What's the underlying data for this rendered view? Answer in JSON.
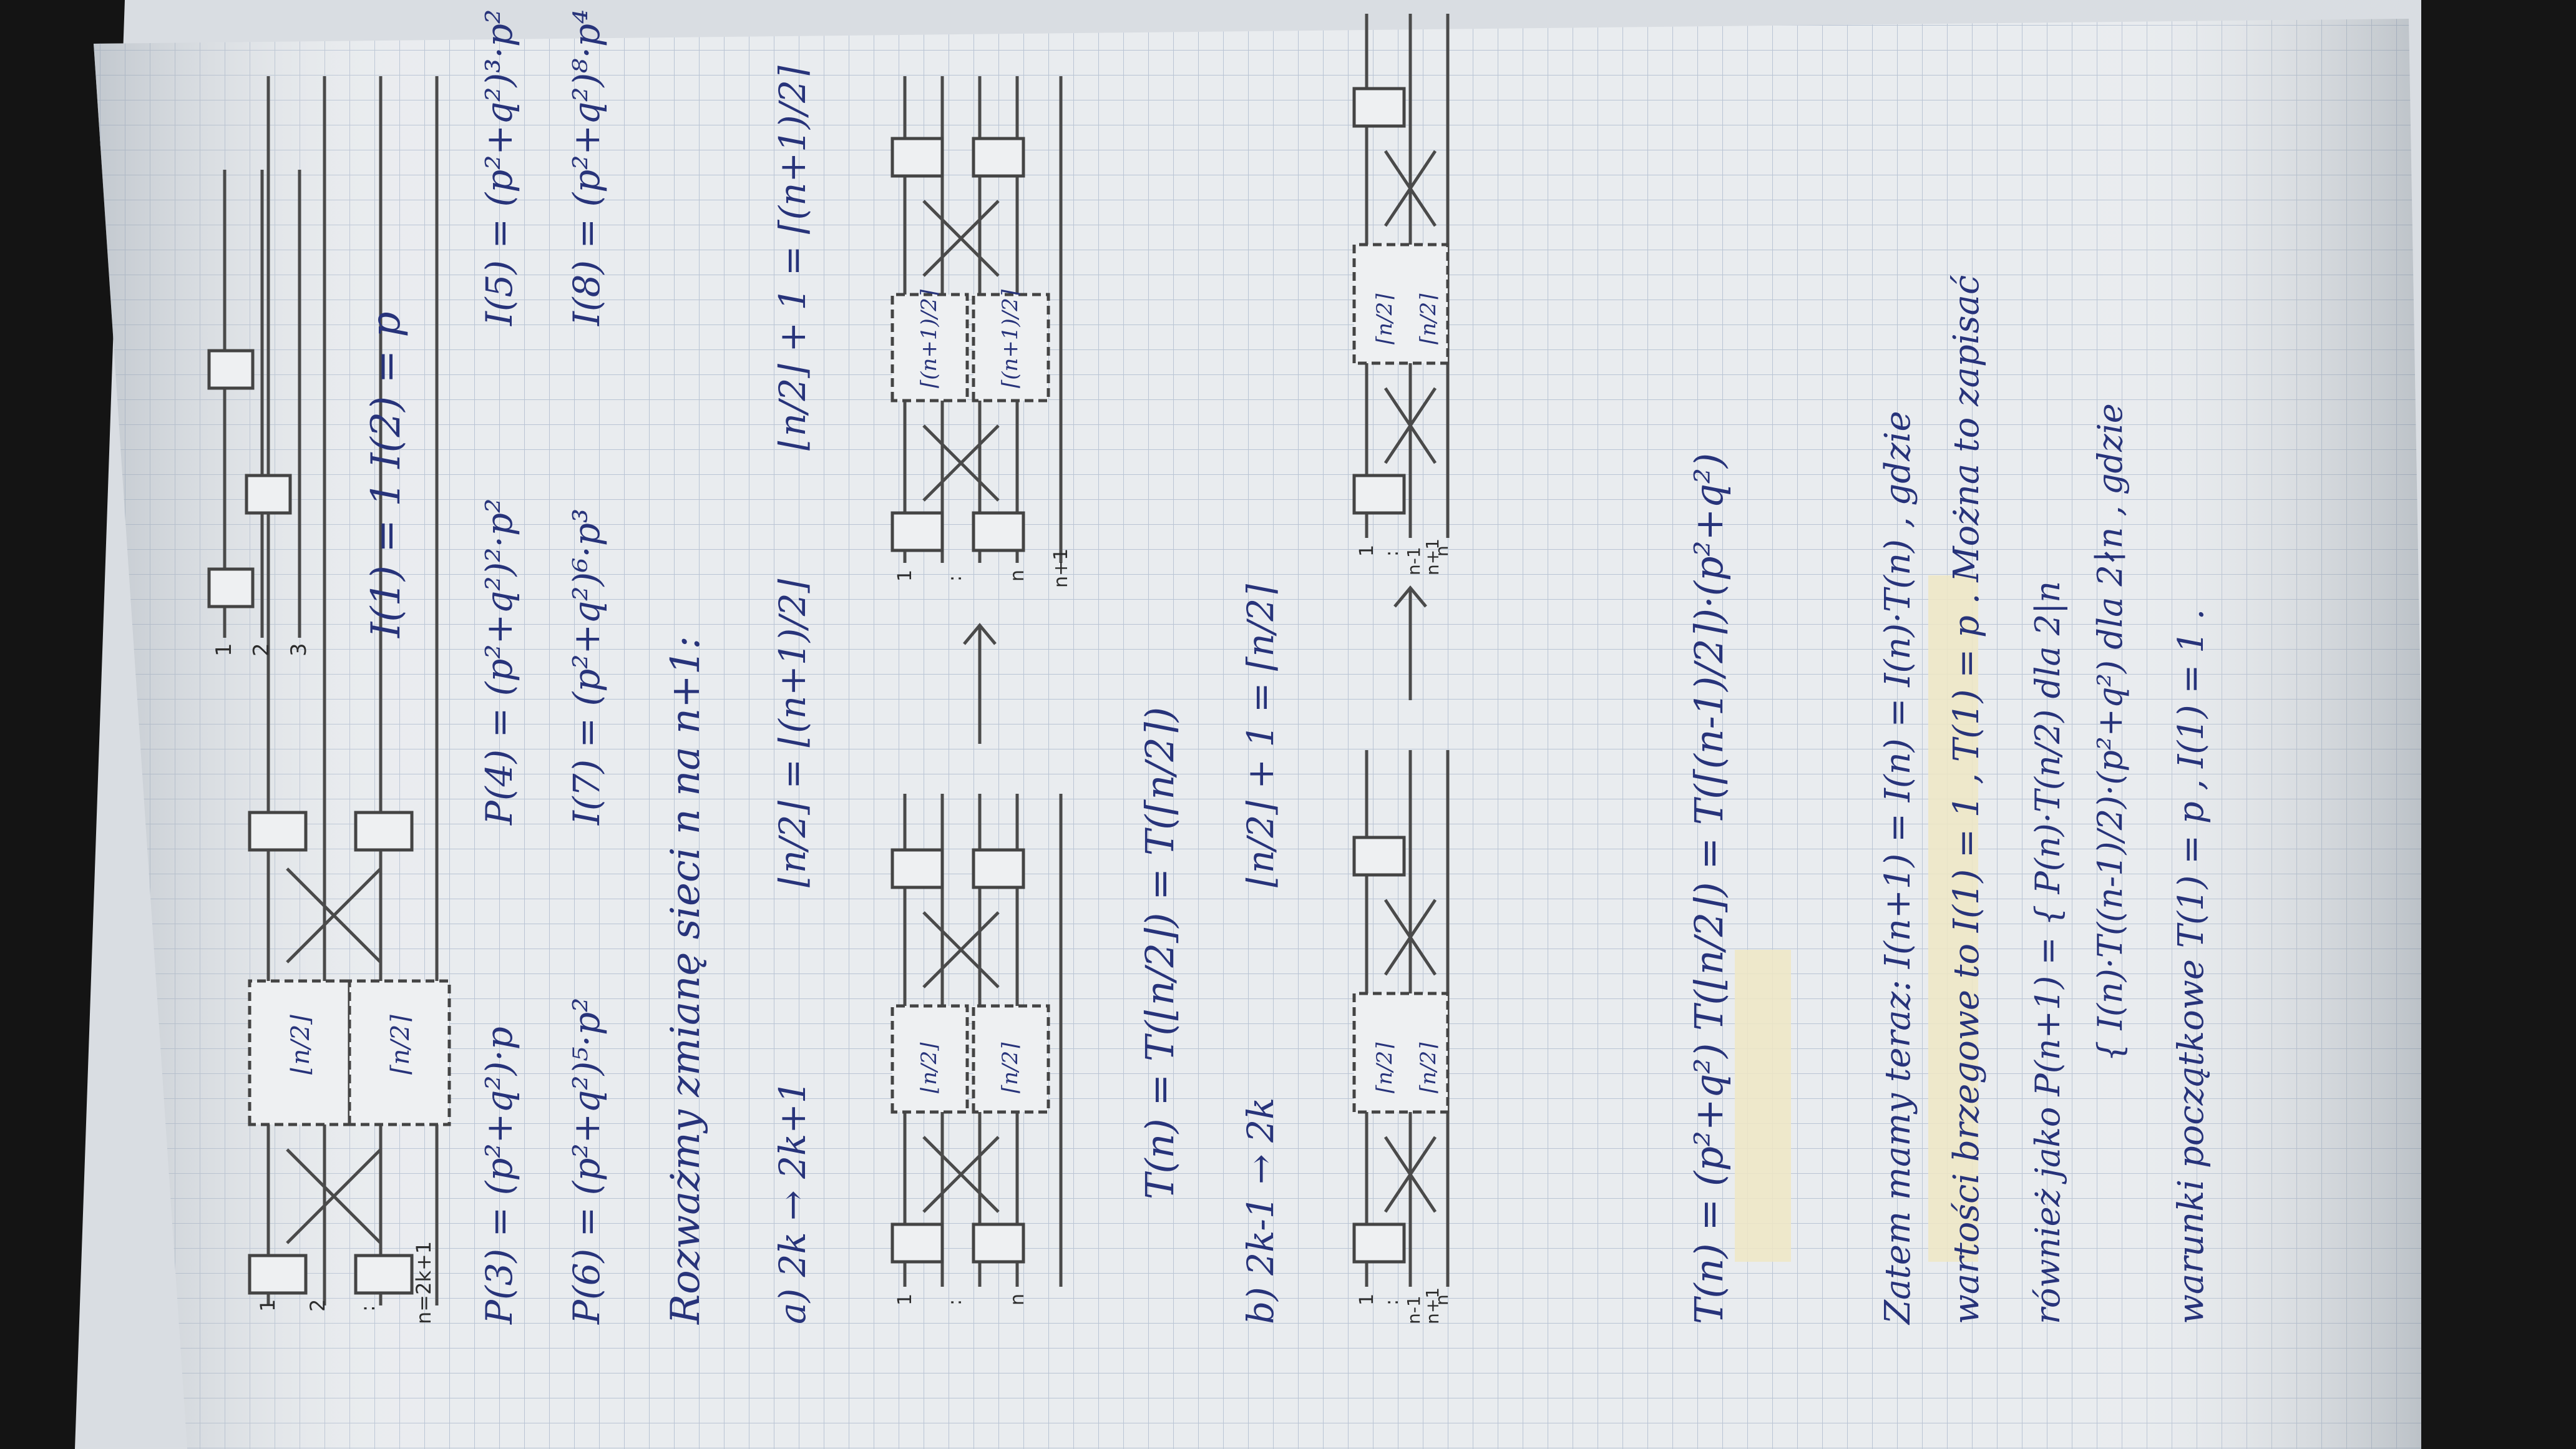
{
  "page": {
    "top_net_label": "n=2k+1",
    "top_net_inputs": [
      "1",
      "2",
      ":"
    ],
    "top_net_box_labels": [
      "⌊n/2⌋",
      "⌈n/2⌉"
    ],
    "three_wire_inputs": [
      "1",
      "2",
      "3"
    ],
    "base_cases": "I(1) = 1    I(2) = p",
    "row1": {
      "p3": "P(3) = (p²+q²)·p",
      "p4": "P(4) = (p²+q²)²·p²",
      "p5": "I(5) = (p²+q²)³·p²"
    },
    "row2": {
      "p6": "P(6) = (p²+q²)⁵·p²",
      "p7": "I(7) = (p²+q²)⁶·p³",
      "p8": "I(8) = (p²+q²)⁸·p⁴"
    },
    "intro": "Rozważmy zmianę sieci n na n+1:",
    "case_a": {
      "label": "a) 2k → 2k+1",
      "floor_eq": "⌊n/2⌋ = ⌊(n+1)/2⌋",
      "ceil_eq": "⌊n/2⌋ + 1 = ⌈(n+1)/2⌉",
      "left_inputs": [
        "1",
        ":",
        "n"
      ],
      "right_inputs": [
        "1",
        ":",
        "n",
        "n+1"
      ],
      "left_boxes": [
        "⌊n/2⌋",
        "⌈n/2⌉"
      ],
      "right_boxes": [
        "⌈(n+1)/2⌉",
        "⌈(n+1)/2⌉"
      ],
      "recurrence": "T(n) = T(⌊n/2⌋) = T(⌈n/2⌉)"
    },
    "case_b": {
      "label": "b) 2k-1 → 2k",
      "ceil_eq": "⌊n/2⌋ + 1 = ⌈n/2⌉",
      "left_inputs": [
        "1",
        ":",
        "n-1",
        "n+1",
        "n"
      ],
      "right_inputs": [
        "1",
        ":",
        "n-1",
        "n+1",
        "n"
      ],
      "left_boxes": [
        "⌈n/2⌉",
        "⌈n/2⌉"
      ],
      "right_boxes": [
        "⌈n/2⌉",
        "⌈n/2⌉"
      ],
      "recurrence": "T(n) = (p²+q²) T(⌊n/2⌋) = T(⌈(n-1)/2⌉)·(p²+q²)"
    },
    "conclusion": {
      "line1": "Zatem mamy teraz:  I(n+1) = I(n) = I(n)·T(n)  , gdzie",
      "line2": "wartości brzegowe to I(1) = 1 , T(1) = p .  Można to zapisać",
      "line3": "również jako  P(n+1) = { P(n)·T(n/2)  dla 2|n",
      "line4": "{ I(n)·T((n-1)/2)·(p²+q²)  dla 2∤n  , gdzie",
      "line5": "warunki początkowe T(1) = p , I(1) = 1 ."
    }
  }
}
